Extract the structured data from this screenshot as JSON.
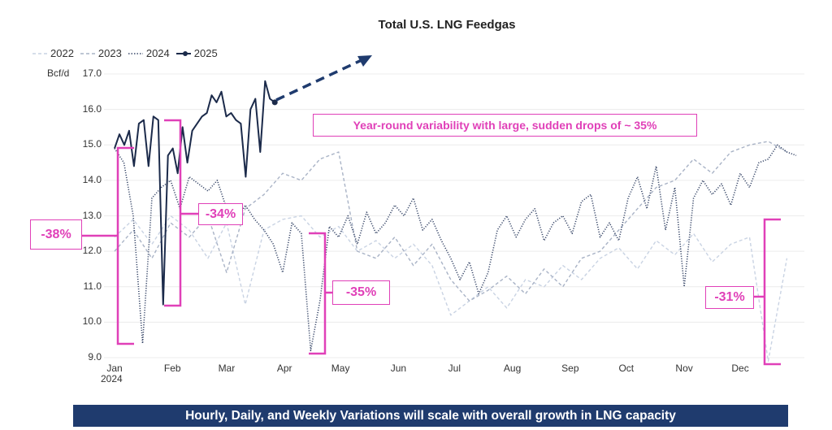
{
  "chart_data": {
    "type": "line",
    "title": "Total U.S. LNG Feedgas",
    "ylabel": "Bcf/d",
    "ylim": [
      9.0,
      17.0
    ],
    "yticks": [
      "17.0",
      "16.0",
      "15.0",
      "14.0",
      "13.0",
      "12.0",
      "11.0",
      "10.0",
      "9.0"
    ],
    "ytick_values": [
      17,
      16,
      15,
      14,
      13,
      12,
      11,
      10,
      9
    ],
    "xticks": [
      "Jan",
      "Feb",
      "Mar",
      "Apr",
      "May",
      "Jun",
      "Jul",
      "Aug",
      "Sep",
      "Oct",
      "Nov",
      "Dec"
    ],
    "xtick_days": [
      0,
      31,
      60,
      91,
      121,
      152,
      182,
      213,
      244,
      274,
      305,
      335
    ],
    "x_year_label": "2024",
    "x_unit": "day of year",
    "grid": true,
    "legend_position": "top-left",
    "series": [
      {
        "name": "2022",
        "style": "dashed-light",
        "color": "#c9d3e3",
        "start_day": 0,
        "step_days": 10,
        "values": [
          12.4,
          12.9,
          12.2,
          13.0,
          12.6,
          11.8,
          12.8,
          10.5,
          12.6,
          12.9,
          13.0,
          12.4,
          12.7,
          12.0,
          12.3,
          11.8,
          12.2,
          11.6,
          10.2,
          10.6,
          11.0,
          10.4,
          11.2,
          11.0,
          11.6,
          11.2,
          11.8,
          12.1,
          11.5,
          12.3,
          11.9,
          12.5,
          11.7,
          12.2,
          12.4,
          8.9,
          11.8
        ]
      },
      {
        "name": "2023",
        "style": "dashed",
        "color": "#a9b3c6",
        "start_day": 0,
        "step_days": 10,
        "values": [
          12.0,
          12.6,
          11.8,
          12.8,
          12.4,
          13.0,
          11.4,
          13.2,
          13.6,
          14.2,
          14.0,
          14.6,
          14.8,
          12.0,
          11.8,
          12.4,
          11.6,
          12.2,
          11.2,
          10.6,
          10.9,
          11.3,
          10.8,
          11.5,
          11.0,
          11.8,
          12.0,
          12.6,
          13.2,
          13.8,
          14.0,
          14.6,
          14.2,
          14.8,
          15.0,
          15.1,
          14.8
        ]
      },
      {
        "name": "2024",
        "style": "dotted",
        "color": "#3b4a6b",
        "start_day": 0,
        "step_days": 5,
        "values": [
          14.9,
          14.5,
          13.0,
          9.4,
          13.5,
          13.8,
          14.0,
          13.2,
          14.1,
          13.9,
          13.7,
          14.0,
          13.2,
          12.8,
          13.3,
          12.9,
          12.6,
          12.2,
          11.4,
          12.8,
          12.5,
          9.2,
          10.6,
          12.7,
          12.4,
          13.0,
          12.2,
          13.1,
          12.5,
          12.8,
          13.3,
          13.0,
          13.5,
          12.6,
          12.9,
          12.3,
          11.8,
          11.2,
          11.7,
          10.8,
          11.4,
          12.6,
          13.0,
          12.4,
          12.9,
          13.2,
          12.3,
          12.8,
          13.0,
          12.5,
          13.4,
          13.6,
          12.4,
          12.8,
          12.3,
          13.5,
          14.1,
          13.2,
          14.4,
          12.6,
          13.8,
          11.0,
          13.5,
          14.0,
          13.6,
          13.9,
          13.3,
          14.2,
          13.8,
          14.5,
          14.6,
          15.0,
          14.8,
          14.7
        ]
      },
      {
        "name": "2025",
        "style": "solid-marker",
        "color": "#1b2a4a",
        "start_day": 0,
        "step_days": 2.6,
        "values": [
          14.9,
          15.3,
          15.0,
          15.4,
          14.4,
          15.6,
          15.7,
          14.4,
          15.8,
          15.7,
          10.5,
          14.7,
          14.9,
          14.2,
          15.5,
          14.5,
          15.4,
          15.6,
          15.8,
          15.9,
          16.4,
          16.2,
          16.5,
          15.8,
          15.9,
          15.7,
          15.6,
          14.1,
          16.0,
          16.3,
          14.8,
          16.8,
          16.3,
          16.2
        ]
      }
    ],
    "annotations": {
      "callout": "Year-round variability with large, sudden drops of ~ 35%",
      "drops": [
        "-38%",
        "-34%",
        "-35%",
        "-31%"
      ],
      "footer": "Hourly, Daily, and Weekly Variations will scale with overall growth in LNG capacity"
    },
    "colors": {
      "accent": "#e040b8",
      "banner": "#1f3b6e",
      "arrow": "#1f3b6e"
    }
  }
}
